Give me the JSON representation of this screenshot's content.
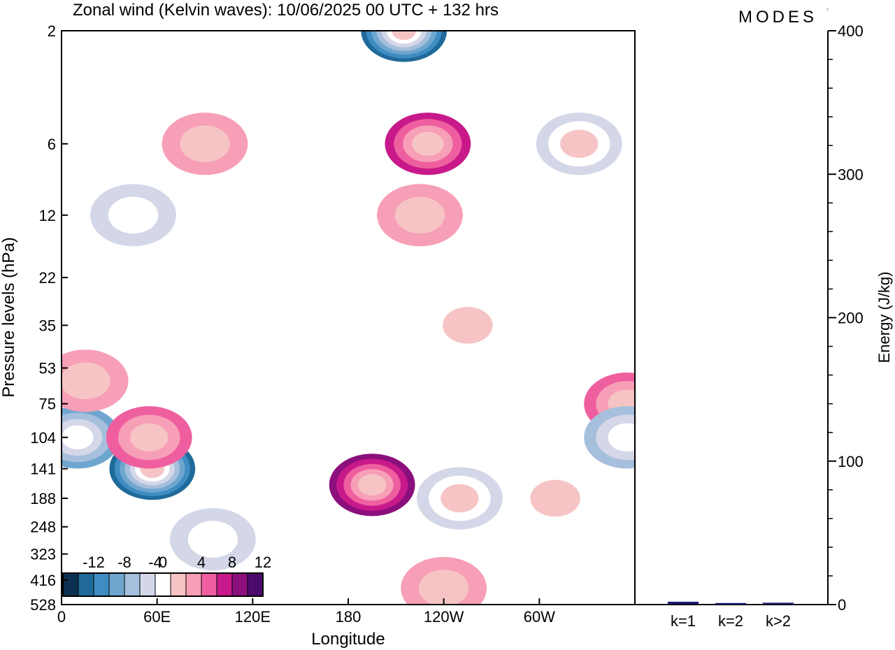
{
  "header": {
    "title": "Zonal wind (Kelvin waves):  10/06/2025  00 UTC  + 132 hrs",
    "logo": "MODES"
  },
  "colors": {
    "bg": "#ffffff",
    "axis": "#000000",
    "bar": "#1a1a7a",
    "scale": [
      "#0d3050",
      "#1f6a9a",
      "#3f8cc2",
      "#6fa6cf",
      "#a5bfdc",
      "#d4d7e8",
      "#ffffff",
      "#f6c4c4",
      "#f79fb7",
      "#ef5fa0",
      "#c8198a",
      "#8b0f7c",
      "#4d0a6e"
    ]
  },
  "chart_data": [
    {
      "type": "heatmap",
      "title": "Zonal wind (Kelvin waves):  10/06/2025  00 UTC  + 132 hrs",
      "xlabel": "Longitude",
      "ylabel": "Pressure levels (hPa)",
      "x_ticks": [
        "0",
        "60E",
        "120E",
        "180",
        "120W",
        "60W"
      ],
      "x_tick_values": [
        0,
        60,
        120,
        180,
        240,
        300
      ],
      "xlim": [
        0,
        360
      ],
      "y_ticks": [
        "2",
        "6",
        "12",
        "22",
        "35",
        "53",
        "75",
        "104",
        "141",
        "188",
        "248",
        "323",
        "416",
        "528"
      ],
      "y_scale": "log",
      "ylim": [
        528,
        2
      ],
      "colorbar": {
        "labels": [
          "-12",
          "-8",
          "-4",
          "0",
          "4",
          "8",
          "12"
        ],
        "levels": [
          -14,
          -12,
          -10,
          -8,
          -6,
          -4,
          -2,
          2,
          4,
          6,
          8,
          10,
          12,
          14
        ],
        "placement": "bottom-left"
      },
      "features": [
        {
          "lon": 57,
          "p": 141,
          "value": -13
        },
        {
          "lon": 10,
          "p": 104,
          "value": -8
        },
        {
          "lon": 45,
          "p": 12,
          "value": -4
        },
        {
          "lon": 215,
          "p": 2,
          "value": -13
        },
        {
          "lon": 230,
          "p": 6,
          "value": 7
        },
        {
          "lon": 195,
          "p": 165,
          "value": 9
        },
        {
          "lon": 55,
          "p": 104,
          "value": 5
        },
        {
          "lon": 355,
          "p": 75,
          "value": 6
        },
        {
          "lon": 355,
          "p": 104,
          "value": -6
        },
        {
          "lon": 250,
          "p": 188,
          "value": -5
        },
        {
          "lon": 225,
          "p": 12,
          "value": 3
        },
        {
          "lon": 255,
          "p": 35,
          "value": -3
        },
        {
          "lon": 15,
          "p": 60,
          "value": 4
        },
        {
          "lon": 90,
          "p": 6,
          "value": 3
        },
        {
          "lon": 325,
          "p": 6,
          "value": -5
        },
        {
          "lon": 310,
          "p": 188,
          "value": -3
        },
        {
          "lon": 240,
          "p": 450,
          "value": 3
        },
        {
          "lon": 95,
          "p": 280,
          "value": -4
        }
      ]
    },
    {
      "type": "bar",
      "categories": [
        "k=1",
        "k=2",
        "k>2"
      ],
      "values": [
        1.5,
        0.6,
        0.8
      ],
      "ylabel": "Energy (J/kg)",
      "ylim": [
        0,
        400
      ],
      "y_ticks": [
        "0",
        "100",
        "200",
        "300",
        "400"
      ]
    }
  ]
}
